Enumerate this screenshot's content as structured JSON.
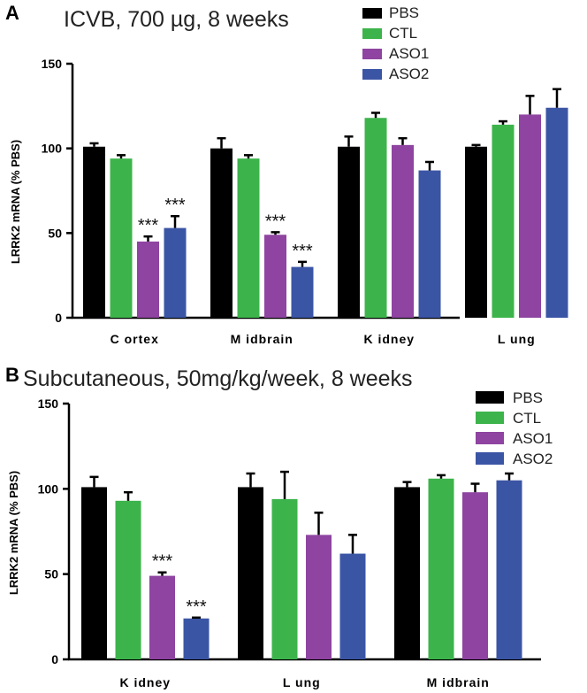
{
  "colors": {
    "PBS": "#000000",
    "CTL": "#3cb44b",
    "ASO1": "#8e44a0",
    "ASO2": "#3b55a5",
    "axis": "#000000",
    "error": "#000000"
  },
  "chart_data": [
    {
      "panel": "A",
      "type": "bar",
      "title": "ICVB, 700 µg, 8 weeks",
      "xlabel": "",
      "ylabel": "LRRK2 mRNA (% PBS)",
      "ylim": [
        0,
        150
      ],
      "yticks": [
        0,
        50,
        100,
        150
      ],
      "ytick_labels": [
        "0",
        "50",
        "100",
        "150"
      ],
      "categories": [
        "Cortex",
        "Midbrain",
        "Kidney",
        "Lung"
      ],
      "category_labels": [
        "C ortex",
        "M idbrain",
        "K idney",
        "L ung"
      ],
      "legend": [
        "PBS",
        "CTL",
        "ASO1",
        "ASO2"
      ],
      "legend_position": "top-right",
      "grid": false,
      "series": [
        {
          "name": "PBS",
          "values": [
            101,
            100,
            101,
            101
          ],
          "errors": [
            2,
            6,
            6,
            1
          ]
        },
        {
          "name": "CTL",
          "values": [
            94,
            94,
            118,
            114
          ],
          "errors": [
            2,
            2,
            3,
            2
          ]
        },
        {
          "name": "ASO1",
          "values": [
            45,
            49,
            102,
            120
          ],
          "errors": [
            3,
            1.5,
            4,
            11
          ]
        },
        {
          "name": "ASO2",
          "values": [
            53,
            30,
            87,
            124
          ],
          "errors": [
            7,
            3,
            5,
            11
          ]
        }
      ],
      "annotations": [
        {
          "category": "Cortex",
          "series": "ASO1",
          "text": "***"
        },
        {
          "category": "Cortex",
          "series": "ASO2",
          "text": "***"
        },
        {
          "category": "Midbrain",
          "series": "ASO1",
          "text": "***"
        },
        {
          "category": "Midbrain",
          "series": "ASO2",
          "text": "***"
        }
      ]
    },
    {
      "panel": "B",
      "type": "bar",
      "title": "Subcutaneous, 50mg/kg/week, 8 weeks",
      "xlabel": "",
      "ylabel": "LRRK2 mRNA (% PBS)",
      "ylim": [
        0,
        150
      ],
      "yticks": [
        0,
        50,
        100,
        150
      ],
      "ytick_labels": [
        "0",
        "50",
        "100",
        "150"
      ],
      "categories": [
        "Kidney",
        "Lung",
        "Midbrain"
      ],
      "category_labels": [
        "K idney",
        "L ung",
        "M idbrain"
      ],
      "legend": [
        "PBS",
        "CTL",
        "ASO1",
        "ASO2"
      ],
      "legend_position": "top-right",
      "grid": false,
      "series": [
        {
          "name": "PBS",
          "values": [
            101,
            101,
            101
          ],
          "errors": [
            6,
            8,
            3
          ]
        },
        {
          "name": "CTL",
          "values": [
            93,
            94,
            106
          ],
          "errors": [
            5,
            16,
            2
          ]
        },
        {
          "name": "ASO1",
          "values": [
            49,
            73,
            98
          ],
          "errors": [
            2,
            13,
            5
          ]
        },
        {
          "name": "ASO2",
          "values": [
            24,
            62,
            105
          ],
          "errors": [
            0.5,
            11,
            4
          ]
        }
      ],
      "annotations": [
        {
          "category": "Kidney",
          "series": "ASO1",
          "text": "***"
        },
        {
          "category": "Kidney",
          "series": "ASO2",
          "text": "***"
        }
      ]
    }
  ]
}
